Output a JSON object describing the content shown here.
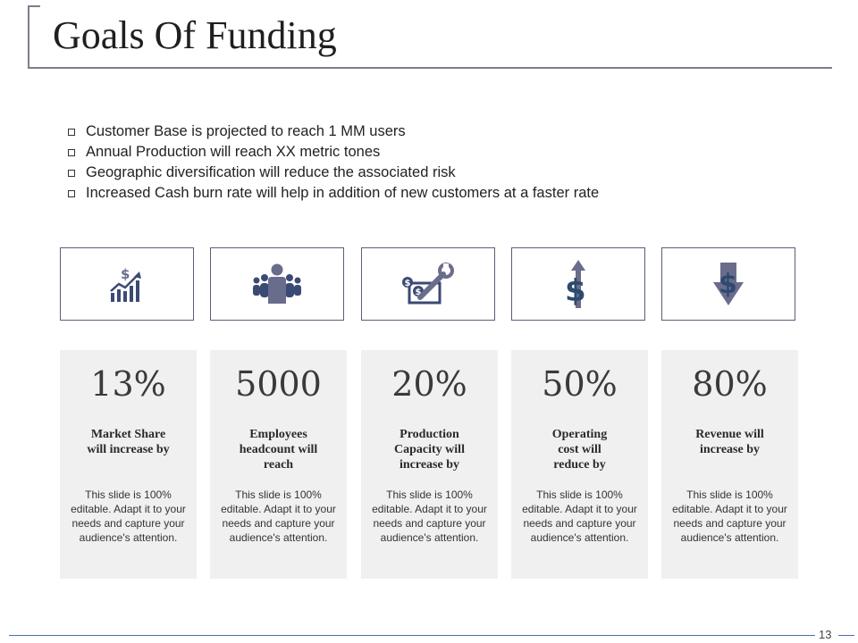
{
  "title": "Goals Of Funding",
  "bullets": [
    "Customer Base is projected to reach 1 MM users",
    "Annual Production will reach XX metric tones",
    "Geographic diversification will reduce the associated risk",
    "Increased Cash burn rate will help in addition of new customers at a faster rate"
  ],
  "icons": [
    "growth-chart-dollar-icon",
    "team-icon",
    "money-wrench-icon",
    "dollar-up-arrow-icon",
    "dollar-down-arrow-icon"
  ],
  "colors": {
    "icon_navy": "#3b4a74",
    "icon_purple": "#6a6c8c",
    "card_bg": "#f0f0f0",
    "footer_line": "#4a6ea8"
  },
  "stats": [
    {
      "value": "13%",
      "label": "Market Share will increase by",
      "description": "This slide is 100% editable. Adapt it to your needs and capture your audience's attention."
    },
    {
      "value": "5000",
      "label": "Employees headcount will reach",
      "description": "This slide is 100% editable. Adapt it to your needs and capture your audience's attention."
    },
    {
      "value": "20%",
      "label": "Production Capacity will increase by",
      "description": "This slide is 100% editable. Adapt it to your needs and capture your audience's attention."
    },
    {
      "value": "50%",
      "label": "Operating cost will reduce by",
      "description": "This slide is 100% editable. Adapt it to your needs and capture your audience's attention."
    },
    {
      "value": "80%",
      "label": "Revenue will increase by",
      "description": "This slide is 100% editable. Adapt it to your needs and capture your audience's attention."
    }
  ],
  "page_number": "13"
}
